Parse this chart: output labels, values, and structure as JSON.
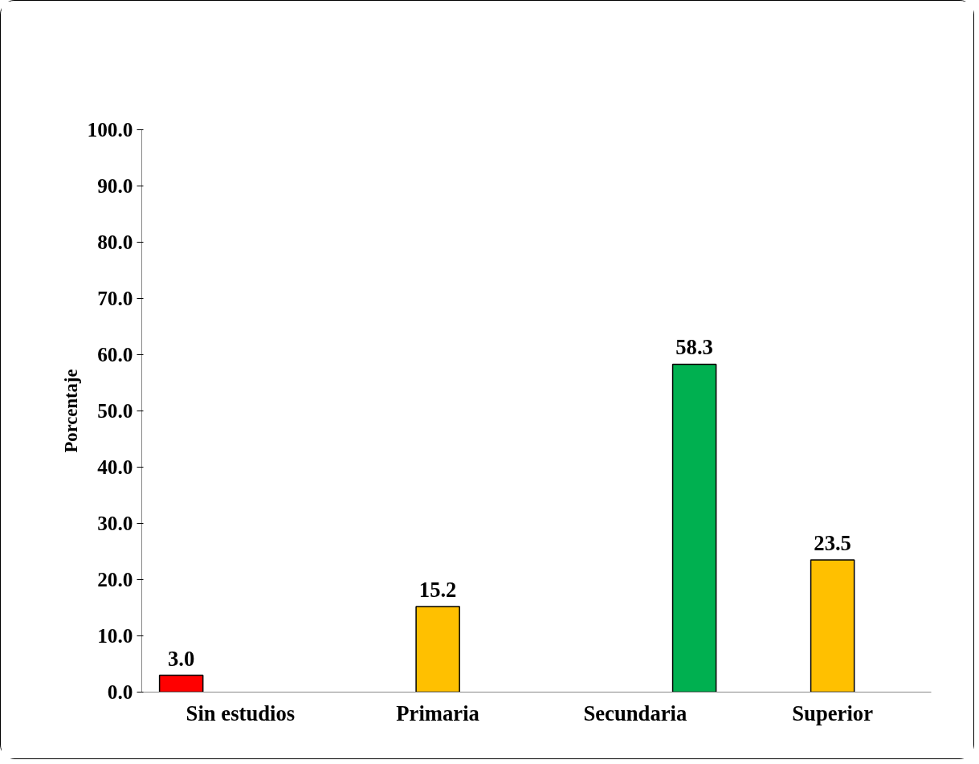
{
  "chart_data": {
    "type": "bar",
    "ylabel": "Porcentaje",
    "categories": [
      "Sin estudios",
      "Primaria",
      "Secundaria",
      "Superior"
    ],
    "series": [
      {
        "color": "#ff0000",
        "values": [
          3.0,
          null,
          null,
          null
        ],
        "value_labels": [
          "3.0",
          null,
          null,
          null
        ]
      },
      {
        "color": "#ffc000",
        "values": [
          null,
          15.2,
          null,
          23.5
        ],
        "value_labels": [
          null,
          "15.2",
          null,
          "23.5"
        ]
      },
      {
        "color": "#00b050",
        "values": [
          null,
          null,
          58.3,
          null
        ],
        "value_labels": [
          null,
          null,
          "58.3",
          null
        ]
      }
    ],
    "ylim": [
      0,
      100
    ],
    "yticks": [
      {
        "value": 0,
        "label": "0.0"
      },
      {
        "value": 10,
        "label": "10.0"
      },
      {
        "value": 20,
        "label": "20.0"
      },
      {
        "value": 30,
        "label": "30.0"
      },
      {
        "value": 40,
        "label": "40.0"
      },
      {
        "value": 50,
        "label": "50.0"
      },
      {
        "value": 60,
        "label": "60.0"
      },
      {
        "value": 70,
        "label": "70.0"
      },
      {
        "value": 80,
        "label": "80.0"
      },
      {
        "value": 90,
        "label": "90.0"
      },
      {
        "value": 100,
        "label": "100.0"
      }
    ],
    "grid": false
  }
}
